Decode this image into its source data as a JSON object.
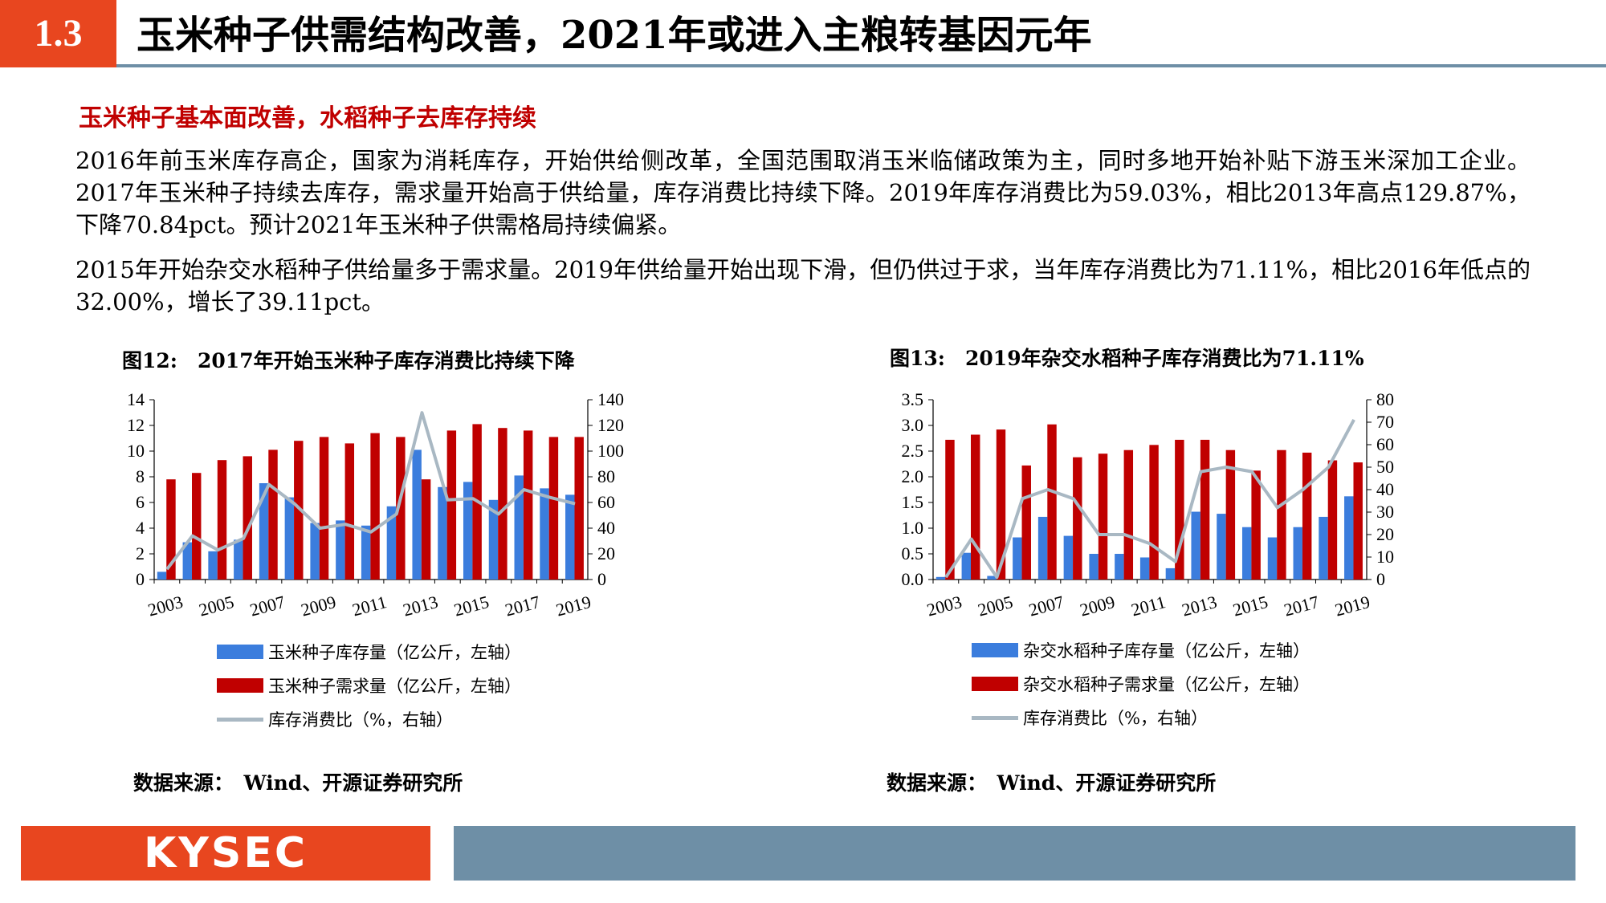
{
  "header": {
    "section": "1.3",
    "title": "玉米种子供需结构改善，2021年或进入主粮转基因元年"
  },
  "subhead": "玉米种子基本面改善，水稻种子去库存持续",
  "paragraphs": [
    "2016年前玉米库存高企，国家为消耗库存，开始供给侧改革，全国范围取消玉米临储政策为主，同时多地开始补贴下游玉米深加工企业。2017年玉米种子持续去库存，需求量开始高于供给量，库存消费比持续下降。2019年库存消费比为59.03%，相比2013年高点129.87%，下降70.84pct。预计2021年玉米种子供需格局持续偏紧。",
    "2015年开始杂交水稻种子供给量多于需求量。2019年供给量开始出现下滑，但仍供过于求，当年库存消费比为71.11%，相比2016年低点的32.00%，增长了39.11pct。"
  ],
  "figures": [
    {
      "title": "图12:　2017年开始玉米种子库存消费比持续下降",
      "source": "数据来源：　Wind、开源证券研究所",
      "legend": [
        "玉米种子库存量（亿公斤，左轴）",
        "玉米种子需求量（亿公斤，左轴）",
        "库存消费比（%，右轴）"
      ]
    },
    {
      "title": "图13:　2019年杂交水稻种子库存消费比为71.11%",
      "source": "数据来源：　Wind、开源证券研究所",
      "legend": [
        "杂交水稻种子库存量（亿公斤，左轴）",
        "杂交水稻种子需求量（亿公斤，左轴）",
        "库存消费比（%，右轴）"
      ]
    }
  ],
  "colors": {
    "accent": "#e8461f",
    "brand_bar": "#6e8fa6",
    "inventory": "#3b7ddd",
    "demand": "#c00000",
    "ratio": "#a9b8c3"
  },
  "footer": {
    "logo": "KYSEC"
  },
  "chart_data": [
    {
      "type": "bar",
      "categories": [
        "2003",
        "2004",
        "2005",
        "2006",
        "2007",
        "2008",
        "2009",
        "2010",
        "2011",
        "2012",
        "2013",
        "2014",
        "2015",
        "2016",
        "2017",
        "2018",
        "2019"
      ],
      "xtick_labels": [
        "2003",
        "2005",
        "2007",
        "2009",
        "2011",
        "2013",
        "2015",
        "2017",
        "2019"
      ],
      "series": [
        {
          "name": "玉米种子库存量（亿公斤，左轴）",
          "axis": "left",
          "kind": "bar",
          "values": [
            0.6,
            2.9,
            2.2,
            3.1,
            7.5,
            6.4,
            4.4,
            4.6,
            4.2,
            5.7,
            10.1,
            7.2,
            7.6,
            6.2,
            8.1,
            7.1,
            6.6
          ]
        },
        {
          "name": "玉米种子需求量（亿公斤，左轴）",
          "axis": "left",
          "kind": "bar",
          "values": [
            7.8,
            8.3,
            9.3,
            9.6,
            10.1,
            10.8,
            11.1,
            10.6,
            11.4,
            11.1,
            7.8,
            11.6,
            12.1,
            11.8,
            11.6,
            11.1,
            11.1
          ]
        },
        {
          "name": "库存消费比（%，右轴）",
          "axis": "right",
          "kind": "line",
          "values": [
            8,
            34,
            23,
            32,
            74,
            59,
            40,
            43,
            37,
            51,
            129.87,
            62,
            63,
            51,
            70,
            64,
            59.03
          ]
        }
      ],
      "ylim_left": [
        0,
        14
      ],
      "yticks_left": [
        0,
        2,
        4,
        6,
        8,
        10,
        12,
        14
      ],
      "ylim_right": [
        0,
        140
      ],
      "yticks_right": [
        0,
        20,
        40,
        60,
        80,
        100,
        120,
        140
      ]
    },
    {
      "type": "bar",
      "categories": [
        "2003",
        "2004",
        "2005",
        "2006",
        "2007",
        "2008",
        "2009",
        "2010",
        "2011",
        "2012",
        "2013",
        "2014",
        "2015",
        "2016",
        "2017",
        "2018",
        "2019"
      ],
      "xtick_labels": [
        "2003",
        "2005",
        "2007",
        "2009",
        "2011",
        "2013",
        "2015",
        "2017",
        "2019"
      ],
      "series": [
        {
          "name": "杂交水稻种子库存量（亿公斤，左轴）",
          "axis": "left",
          "kind": "bar",
          "values": [
            0.05,
            0.52,
            0.07,
            0.82,
            1.22,
            0.85,
            0.5,
            0.5,
            0.43,
            0.22,
            1.32,
            1.28,
            1.02,
            0.82,
            1.02,
            1.22,
            1.62
          ]
        },
        {
          "name": "杂交水稻种子需求量（亿公斤，左轴）",
          "axis": "left",
          "kind": "bar",
          "values": [
            2.72,
            2.82,
            2.92,
            2.22,
            3.02,
            2.38,
            2.45,
            2.52,
            2.62,
            2.72,
            2.72,
            2.52,
            2.12,
            2.52,
            2.47,
            2.32,
            2.28
          ]
        },
        {
          "name": "库存消费比（%，右轴）",
          "axis": "right",
          "kind": "line",
          "values": [
            1,
            18,
            1,
            36,
            40,
            36,
            20,
            20,
            16,
            8,
            48,
            50,
            48,
            32.0,
            40,
            50,
            71.11
          ]
        }
      ],
      "ylim_left": [
        0,
        3.5
      ],
      "yticks_left": [
        "0.0",
        "0.5",
        "1.0",
        "1.5",
        "2.0",
        "2.5",
        "3.0",
        "3.5"
      ],
      "ylim_right": [
        0,
        80
      ],
      "yticks_right": [
        0,
        10,
        20,
        30,
        40,
        50,
        60,
        70,
        80
      ]
    }
  ]
}
